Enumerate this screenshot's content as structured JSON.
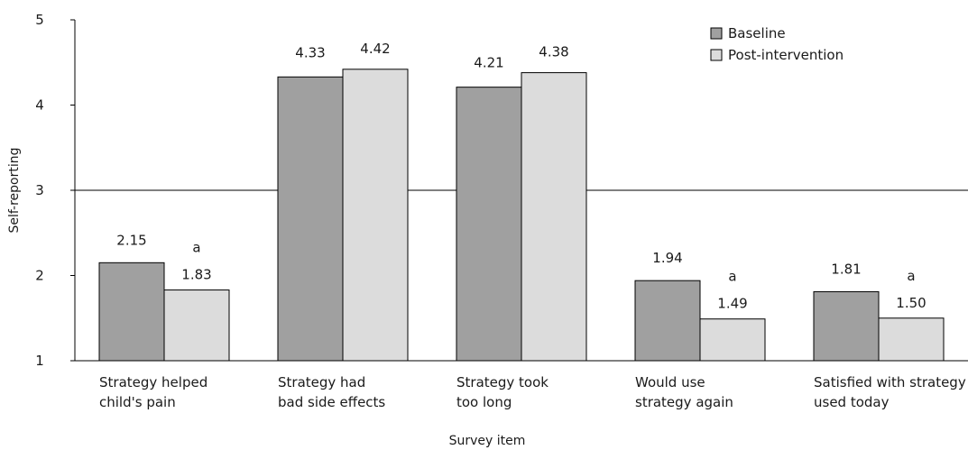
{
  "chart_data": {
    "type": "bar",
    "xlabel": "Survey item",
    "ylabel": "Self-reporting",
    "ylim": [
      1,
      5
    ],
    "yticks": [
      "1",
      "2",
      "3",
      "4",
      "5"
    ],
    "reference_line": 3,
    "grid": false,
    "legend_position": "top-right",
    "categories": [
      [
        "Strategy helped",
        "child's pain"
      ],
      [
        "Strategy had",
        "bad side effects"
      ],
      [
        "Strategy took",
        "too long"
      ],
      [
        "Would use",
        "strategy again"
      ],
      [
        "Satisfied with strategy",
        "used today"
      ]
    ],
    "series": [
      {
        "name": "Baseline",
        "color": "#a0a0a0",
        "values": [
          2.15,
          4.33,
          4.21,
          1.94,
          1.81
        ],
        "labels": [
          "2.15",
          "4.33",
          "4.21",
          "1.94",
          "1.81"
        ]
      },
      {
        "name": "Post-intervention",
        "color": "#dcdcdc",
        "values": [
          1.83,
          4.42,
          4.38,
          1.49,
          1.5
        ],
        "labels": [
          "1.83",
          "4.42",
          "4.38",
          "1.49",
          "1.50"
        ]
      }
    ],
    "significance_markers": [
      "a",
      "",
      "",
      "a",
      "a"
    ]
  }
}
